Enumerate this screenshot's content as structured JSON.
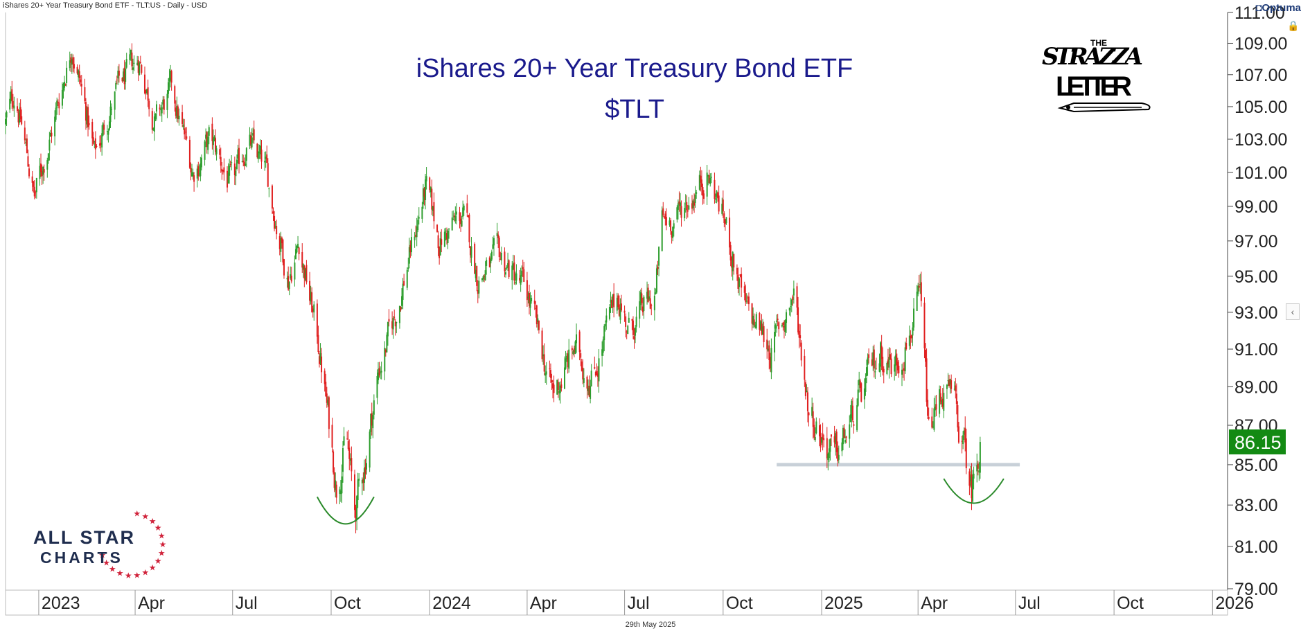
{
  "header": {
    "instrument": "iShares 20+ Year Treasury Bond ETF - TLT:US - Daily - USD",
    "brand": "Optuma"
  },
  "title_line1": "iShares 20+ Year Treasury Bond ETF",
  "title_line2": "$TLT",
  "footer_date": "29th May 2025",
  "logos": {
    "strazza_the": "THE",
    "strazza_name": "STRAZZA",
    "strazza_letter": "LETTER",
    "allstar_line1": "ALL STAR",
    "allstar_line2": "CHARTS"
  },
  "colors": {
    "up": "#2e9e2e",
    "down": "#e02020",
    "title": "#1a1a8c",
    "price_badge": "#138a13",
    "support_line": "#c8d0d8",
    "arc": "#2a8a2a"
  },
  "chart_data": {
    "type": "candlestick",
    "title": "iShares 20+ Year Treasury Bond ETF",
    "subtitle": "$TLT",
    "ylim": [
      79,
      111
    ],
    "y_ticks": [
      "79.00",
      "81.00",
      "83.00",
      "85.00",
      "87.00",
      "89.00",
      "91.00",
      "93.00",
      "95.00",
      "97.00",
      "99.00",
      "101.00",
      "103.00",
      "105.00",
      "107.00",
      "109.00",
      "111.00"
    ],
    "x_range": [
      "2022-12-01",
      "2026-01-15"
    ],
    "x_ticks": [
      {
        "date": "2023-01-01",
        "label": "2023"
      },
      {
        "date": "2023-04-01",
        "label": "Apr"
      },
      {
        "date": "2023-07-01",
        "label": "Jul"
      },
      {
        "date": "2023-10-01",
        "label": "Oct"
      },
      {
        "date": "2024-01-01",
        "label": "2024"
      },
      {
        "date": "2024-04-01",
        "label": "Apr"
      },
      {
        "date": "2024-07-01",
        "label": "Jul"
      },
      {
        "date": "2024-10-01",
        "label": "Oct"
      },
      {
        "date": "2025-01-01",
        "label": "2025"
      },
      {
        "date": "2025-04-01",
        "label": "Apr"
      },
      {
        "date": "2025-07-01",
        "label": "Jul"
      },
      {
        "date": "2025-10-01",
        "label": "Oct"
      },
      {
        "date": "2026-01-01",
        "label": "2026"
      }
    ],
    "last_price": "86.15",
    "close_path": [
      [
        "2022-12-01",
        104
      ],
      [
        "2022-12-10",
        106
      ],
      [
        "2022-12-28",
        99.5
      ],
      [
        "2023-01-15",
        104
      ],
      [
        "2023-02-01",
        109
      ],
      [
        "2023-02-22",
        102
      ],
      [
        "2023-03-15",
        106
      ],
      [
        "2023-04-05",
        108
      ],
      [
        "2023-04-20",
        104
      ],
      [
        "2023-05-05",
        106
      ],
      [
        "2023-05-25",
        101
      ],
      [
        "2023-06-10",
        103
      ],
      [
        "2023-07-01",
        100
      ],
      [
        "2023-07-15",
        103
      ],
      [
        "2023-08-01",
        101
      ],
      [
        "2023-08-22",
        95
      ],
      [
        "2023-09-01",
        97
      ],
      [
        "2023-09-20",
        91
      ],
      [
        "2023-10-06",
        84
      ],
      [
        "2023-10-15",
        86.5
      ],
      [
        "2023-10-23",
        82.5
      ],
      [
        "2023-11-01",
        85
      ],
      [
        "2023-11-15",
        90
      ],
      [
        "2023-12-01",
        93
      ],
      [
        "2023-12-28",
        100
      ],
      [
        "2024-01-10",
        97
      ],
      [
        "2024-02-01",
        98.5
      ],
      [
        "2024-02-15",
        95
      ],
      [
        "2024-03-08",
        96
      ],
      [
        "2024-04-01",
        94
      ],
      [
        "2024-04-25",
        88.5
      ],
      [
        "2024-05-15",
        91
      ],
      [
        "2024-06-01",
        89.5
      ],
      [
        "2024-06-25",
        94
      ],
      [
        "2024-07-05",
        92
      ],
      [
        "2024-07-30",
        94
      ],
      [
        "2024-08-05",
        98
      ],
      [
        "2024-08-20",
        98.5
      ],
      [
        "2024-09-16",
        101
      ],
      [
        "2024-10-01",
        98.5
      ],
      [
        "2024-10-22",
        93
      ],
      [
        "2024-11-05",
        92
      ],
      [
        "2024-11-15",
        91
      ],
      [
        "2024-12-06",
        94
      ],
      [
        "2024-12-20",
        88
      ],
      [
        "2025-01-13",
        85.2
      ],
      [
        "2025-01-28",
        87
      ],
      [
        "2025-02-25",
        91
      ],
      [
        "2025-03-10",
        90
      ],
      [
        "2025-04-03",
        93.5
      ],
      [
        "2025-04-11",
        86.5
      ],
      [
        "2025-04-25",
        89
      ],
      [
        "2025-05-05",
        88
      ],
      [
        "2025-05-21",
        83.8
      ],
      [
        "2025-05-29",
        86.15
      ]
    ],
    "annotations": [
      {
        "type": "support_line",
        "y": 85,
        "x_start": "2024-11-20",
        "x_end": "2025-07-05"
      },
      {
        "type": "arc",
        "x_start": "2023-09-18",
        "x_end": "2023-11-10",
        "y_top": 83.4,
        "y_bottom": 82.2
      },
      {
        "type": "arc",
        "x_start": "2025-04-25",
        "x_end": "2025-06-20",
        "y_top": 84.3,
        "y_bottom": 83.2
      }
    ]
  }
}
